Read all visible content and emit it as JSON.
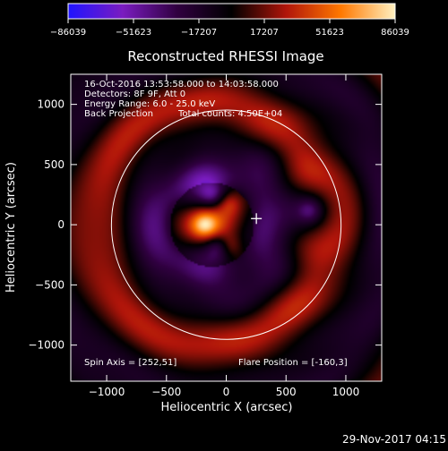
{
  "chart_data": {
    "type": "heatmap",
    "title": "Reconstructed RHESSI Image",
    "xlabel": "Heliocentric X (arcsec)",
    "ylabel": "Heliocentric Y (arcsec)",
    "xlim": [
      -1300,
      1300
    ],
    "ylim": [
      -1300,
      1250
    ],
    "xticks": [
      -1000,
      -500,
      0,
      500,
      1000
    ],
    "yticks": [
      -1000,
      -500,
      0,
      500,
      1000
    ],
    "xtick_labels": [
      "−1000",
      "−500",
      "0",
      "500",
      "1000"
    ],
    "ytick_labels": [
      "−1000",
      "−500",
      "0",
      "500",
      "1000"
    ],
    "colorbar": {
      "min": -86039,
      "max": 86039,
      "ticks": [
        -86039,
        -51623,
        -17207,
        17207,
        51623,
        86039
      ],
      "tick_labels": [
        "−86039",
        "−51623",
        "−17207",
        "17207",
        "51623",
        "86039"
      ],
      "colors": [
        "#1f14ff",
        "#7a1cc0",
        "#300040",
        "#000000",
        "#b0150a",
        "#ff7800",
        "#fff0c0"
      ]
    },
    "info_lines": [
      "16-Oct-2016 13:53:58.000 to 14:03:58.000",
      "Detectors: 8F 9F, Att 0",
      "Energy Range: 6.0 - 25.0 keV",
      "Back Projection",
      "Total counts: 4.50E+04"
    ],
    "spin_axis": "Spin Axis = [252,51]",
    "flare_position": "Flare Position = [-160,3]",
    "solar_disk": {
      "center": [
        0,
        0
      ],
      "radius": 960
    },
    "cross_marker": [
      252,
      51
    ],
    "sources": [
      {
        "x": -180,
        "y": 0,
        "amp": 86039
      },
      {
        "x": 30,
        "y": 180,
        "amp": 52000
      },
      {
        "x": 30,
        "y": -180,
        "amp": 52000
      },
      {
        "x": -120,
        "y": 240,
        "amp": -58000
      },
      {
        "x": -70,
        "y": -180,
        "amp": -58000
      },
      {
        "x": 700,
        "y": 120,
        "amp": -55000
      }
    ]
  },
  "footer": {
    "date": "29-Nov-2017 04:15"
  }
}
